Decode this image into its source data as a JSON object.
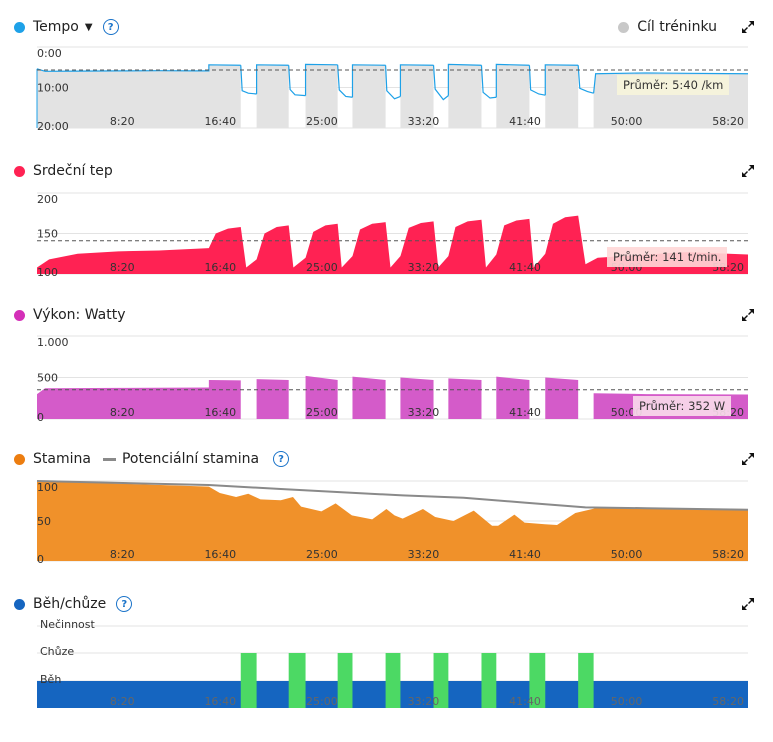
{
  "panels": {
    "pace": {
      "title": "Tempo",
      "legend_right": "Cíl tréninku",
      "avg_label": "Průměr: 5:40 /km",
      "color": "#1ea1e8"
    },
    "hr": {
      "title": "Srdeční tep",
      "avg_label": "Průměr: 141 t/min.",
      "color": "#ff2253"
    },
    "power": {
      "title": "Výkon: Watty",
      "avg_label": "Průměr: 352 W",
      "color": "#d45bc9"
    },
    "stamina": {
      "title": "Stamina",
      "legend2": "Potenciální stamina",
      "color": "#f0912a",
      "color2": "#8a8a8a"
    },
    "walk": {
      "title": "Běh/chůze",
      "color": "#1565c0",
      "color2": "#4cd964"
    }
  },
  "chart_data": [
    {
      "id": "pace",
      "type": "area",
      "xlim": [
        0,
        3500
      ],
      "x_ticks": [
        500,
        1000,
        1500,
        2000,
        2500,
        3000,
        3500
      ],
      "x_tick_labels": [
        "8:20",
        "16:40",
        "25:00",
        "33:20",
        "41:40",
        "50:00",
        "58:20"
      ],
      "ylim": [
        0,
        20
      ],
      "inverted": true,
      "y_tick_labels": [
        "0:00",
        "10:00",
        "20:00"
      ],
      "y_ticks": [
        0,
        10,
        20
      ],
      "average": 5.67,
      "unit": "min/km",
      "segments": [
        {
          "fill": true,
          "points": [
            [
              0,
              5.4
            ],
            [
              40,
              6.0
            ],
            [
              200,
              5.95
            ],
            [
              400,
              5.9
            ],
            [
              600,
              5.85
            ],
            [
              780,
              5.9
            ],
            [
              846,
              5.9
            ],
            [
              846,
              4.4
            ],
            [
              1003,
              4.5
            ]
          ]
        },
        {
          "fill": false,
          "points": [
            [
              1003,
              4.5
            ],
            [
              1010,
              10.8
            ],
            [
              1040,
              11.4
            ],
            [
              1081,
              11.6
            ]
          ]
        },
        {
          "fill": true,
          "points": [
            [
              1081,
              11.6
            ],
            [
              1081,
              4.4
            ],
            [
              1239,
              4.5
            ]
          ]
        },
        {
          "fill": false,
          "points": [
            [
              1239,
              4.5
            ],
            [
              1246,
              10.5
            ],
            [
              1270,
              11.8
            ],
            [
              1322,
              12.0
            ]
          ]
        },
        {
          "fill": true,
          "points": [
            [
              1322,
              12.0
            ],
            [
              1322,
              4.3
            ],
            [
              1480,
              4.4
            ]
          ]
        },
        {
          "fill": false,
          "points": [
            [
              1480,
              4.4
            ],
            [
              1488,
              10.6
            ],
            [
              1520,
              12.2
            ],
            [
              1553,
              12.4
            ]
          ]
        },
        {
          "fill": true,
          "points": [
            [
              1553,
              12.4
            ],
            [
              1553,
              4.4
            ],
            [
              1716,
              4.5
            ]
          ]
        },
        {
          "fill": false,
          "points": [
            [
              1716,
              4.5
            ],
            [
              1722,
              10.8
            ],
            [
              1760,
              12.8
            ],
            [
              1789,
              12.2
            ]
          ]
        },
        {
          "fill": true,
          "points": [
            [
              1789,
              12.2
            ],
            [
              1789,
              4.4
            ],
            [
              1952,
              4.5
            ]
          ]
        },
        {
          "fill": false,
          "points": [
            [
              1952,
              4.5
            ],
            [
              1960,
              10.4
            ],
            [
              2000,
              13.0
            ],
            [
              2025,
              12.0
            ]
          ]
        },
        {
          "fill": true,
          "points": [
            [
              2025,
              12.0
            ],
            [
              2025,
              4.3
            ],
            [
              2188,
              4.5
            ]
          ]
        },
        {
          "fill": false,
          "points": [
            [
              2188,
              4.5
            ],
            [
              2196,
              11.2
            ],
            [
              2230,
              12.6
            ],
            [
              2261,
              12.4
            ]
          ]
        },
        {
          "fill": true,
          "points": [
            [
              2261,
              12.4
            ],
            [
              2261,
              4.3
            ],
            [
              2424,
              4.5
            ]
          ]
        },
        {
          "fill": false,
          "points": [
            [
              2424,
              4.5
            ],
            [
              2430,
              10.6
            ],
            [
              2470,
              11.6
            ],
            [
              2502,
              11.9
            ]
          ]
        },
        {
          "fill": true,
          "points": [
            [
              2502,
              11.9
            ],
            [
              2502,
              4.4
            ],
            [
              2664,
              4.5
            ]
          ]
        },
        {
          "fill": false,
          "points": [
            [
              2664,
              4.5
            ],
            [
              2672,
              10.2
            ],
            [
              2710,
              11.0
            ],
            [
              2740,
              11.4
            ]
          ]
        },
        {
          "fill": true,
          "points": [
            [
              2740,
              11.4
            ],
            [
              2750,
              6.6
            ],
            [
              3000,
              6.4
            ],
            [
              3200,
              6.5
            ],
            [
              3500,
              6.6
            ]
          ]
        }
      ]
    },
    {
      "id": "hr",
      "type": "area",
      "xlim": [
        0,
        3500
      ],
      "ylim": [
        100,
        200
      ],
      "y_ticks": [
        100,
        150,
        200
      ],
      "y_tick_labels": [
        "100",
        "150",
        "200"
      ],
      "average": 141,
      "unit": "bpm",
      "points": [
        [
          0,
          108
        ],
        [
          60,
          118
        ],
        [
          200,
          125
        ],
        [
          400,
          128
        ],
        [
          600,
          129
        ],
        [
          846,
          132
        ],
        [
          880,
          150
        ],
        [
          940,
          156
        ],
        [
          1003,
          158
        ],
        [
          1030,
          108
        ],
        [
          1081,
          118
        ],
        [
          1120,
          150
        ],
        [
          1180,
          158
        ],
        [
          1239,
          160
        ],
        [
          1262,
          108
        ],
        [
          1322,
          120
        ],
        [
          1360,
          152
        ],
        [
          1420,
          160
        ],
        [
          1480,
          162
        ],
        [
          1500,
          108
        ],
        [
          1553,
          122
        ],
        [
          1590,
          155
        ],
        [
          1650,
          162
        ],
        [
          1716,
          164
        ],
        [
          1740,
          108
        ],
        [
          1789,
          122
        ],
        [
          1830,
          157
        ],
        [
          1890,
          163
        ],
        [
          1952,
          165
        ],
        [
          1975,
          108
        ],
        [
          2025,
          122
        ],
        [
          2060,
          158
        ],
        [
          2120,
          165
        ],
        [
          2188,
          167
        ],
        [
          2210,
          108
        ],
        [
          2261,
          124
        ],
        [
          2300,
          160
        ],
        [
          2360,
          166
        ],
        [
          2424,
          168
        ],
        [
          2445,
          108
        ],
        [
          2502,
          125
        ],
        [
          2540,
          162
        ],
        [
          2600,
          170
        ],
        [
          2664,
          172
        ],
        [
          2700,
          112
        ],
        [
          2760,
          120
        ],
        [
          3000,
          124
        ],
        [
          3200,
          127
        ],
        [
          3500,
          124
        ]
      ]
    },
    {
      "id": "power",
      "type": "area",
      "xlim": [
        0,
        3500
      ],
      "ylim": [
        0,
        1000
      ],
      "y_ticks": [
        0,
        500,
        1000
      ],
      "y_tick_labels": [
        "0",
        "500",
        "1.000"
      ],
      "average": 352,
      "unit": "W",
      "points": [
        [
          0,
          300
        ],
        [
          40,
          370
        ],
        [
          400,
          375
        ],
        [
          846,
          380
        ],
        [
          846,
          470
        ],
        [
          1003,
          465
        ],
        [
          1003,
          0
        ],
        [
          1081,
          0
        ],
        [
          1081,
          480
        ],
        [
          1239,
          470
        ],
        [
          1239,
          0
        ],
        [
          1322,
          0
        ],
        [
          1322,
          520
        ],
        [
          1480,
          470
        ],
        [
          1480,
          0
        ],
        [
          1553,
          0
        ],
        [
          1553,
          510
        ],
        [
          1716,
          470
        ],
        [
          1716,
          0
        ],
        [
          1789,
          0
        ],
        [
          1789,
          500
        ],
        [
          1952,
          470
        ],
        [
          1952,
          0
        ],
        [
          2025,
          0
        ],
        [
          2025,
          490
        ],
        [
          2188,
          470
        ],
        [
          2188,
          0
        ],
        [
          2261,
          0
        ],
        [
          2261,
          510
        ],
        [
          2424,
          470
        ],
        [
          2424,
          0
        ],
        [
          2502,
          0
        ],
        [
          2502,
          500
        ],
        [
          2664,
          470
        ],
        [
          2664,
          0
        ],
        [
          2740,
          0
        ],
        [
          2740,
          310
        ],
        [
          3000,
          300
        ],
        [
          3500,
          295
        ]
      ]
    },
    {
      "id": "stamina",
      "type": "area",
      "xlim": [
        0,
        3500
      ],
      "ylim": [
        0,
        100
      ],
      "y_ticks": [
        0,
        50,
        100
      ],
      "y_tick_labels": [
        "0",
        "50",
        "100"
      ],
      "series": [
        {
          "name": "Stamina",
          "points": [
            [
              0,
              100
            ],
            [
              846,
              93
            ],
            [
              900,
              85
            ],
            [
              980,
              80
            ],
            [
              1040,
              84
            ],
            [
              1100,
              77
            ],
            [
              1200,
              76
            ],
            [
              1260,
              80
            ],
            [
              1300,
              68
            ],
            [
              1400,
              62
            ],
            [
              1470,
              72
            ],
            [
              1550,
              57
            ],
            [
              1650,
              52
            ],
            [
              1720,
              65
            ],
            [
              1760,
              57
            ],
            [
              1800,
              53
            ],
            [
              1900,
              65
            ],
            [
              1960,
              55
            ],
            [
              2050,
              50
            ],
            [
              2150,
              63
            ],
            [
              2240,
              44
            ],
            [
              2270,
              44
            ],
            [
              2350,
              58
            ],
            [
              2400,
              48
            ],
            [
              2500,
              46
            ],
            [
              2560,
              45
            ],
            [
              2650,
              60
            ],
            [
              2750,
              66
            ],
            [
              2850,
              67
            ],
            [
              3100,
              66
            ],
            [
              3500,
              65
            ]
          ]
        },
        {
          "name": "Potenciální stamina",
          "points": [
            [
              0,
              100
            ],
            [
              846,
              95
            ],
            [
              1200,
              90
            ],
            [
              1500,
              86
            ],
            [
              1800,
              82
            ],
            [
              2100,
              79
            ],
            [
              2400,
              73
            ],
            [
              2700,
              67
            ],
            [
              3000,
              66
            ],
            [
              3500,
              64
            ]
          ]
        }
      ]
    },
    {
      "id": "walk",
      "type": "bar",
      "xlim": [
        0,
        3500
      ],
      "categories": [
        "Nečinnost",
        "Chůze",
        "Běh"
      ],
      "run": [
        [
          0,
          3500
        ]
      ],
      "walk": [
        [
          1003,
          1081
        ],
        [
          1239,
          1322
        ],
        [
          1480,
          1553
        ],
        [
          1716,
          1789
        ],
        [
          1952,
          2025
        ],
        [
          2188,
          2261
        ],
        [
          2424,
          2502
        ],
        [
          2664,
          2740
        ]
      ]
    }
  ]
}
